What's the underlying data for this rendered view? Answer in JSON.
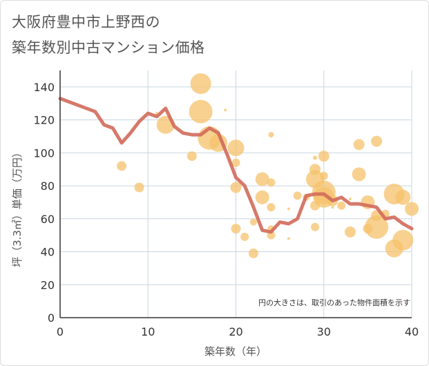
{
  "title_line1": "大阪府豊中市上野西の",
  "title_line2": "築年数別中古マンション価格",
  "chart_data": {
    "type": "scatter",
    "title": "大阪府豊中市上野西の築年数別中古マンション価格",
    "xlabel": "築年数（年）",
    "ylabel": "坪（3.3㎡）単価（万円）",
    "xlim": [
      0,
      40
    ],
    "ylim": [
      0,
      150
    ],
    "xticks": [
      "0",
      "10",
      "20",
      "30",
      "40"
    ],
    "yticks": [
      "0",
      "20",
      "40",
      "60",
      "80",
      "100",
      "120",
      "140"
    ],
    "grid": true,
    "note": "円の大きさは、取引のあった物件面積を示す",
    "colors": {
      "bubble": "#f5c26b",
      "line": "#d26a5a",
      "grid": "#c8d6e0",
      "axis": "#333333"
    },
    "bubbles": [
      {
        "x": 7,
        "y": 92,
        "s": 7
      },
      {
        "x": 9,
        "y": 79,
        "s": 7
      },
      {
        "x": 11,
        "y": 124,
        "s": 2
      },
      {
        "x": 12,
        "y": 117,
        "s": 13
      },
      {
        "x": 15,
        "y": 98,
        "s": 7
      },
      {
        "x": 16,
        "y": 142,
        "s": 15
      },
      {
        "x": 16,
        "y": 125,
        "s": 17
      },
      {
        "x": 17,
        "y": 109,
        "s": 17
      },
      {
        "x": 18,
        "y": 106,
        "s": 13
      },
      {
        "x": 18.8,
        "y": 126,
        "s": 2
      },
      {
        "x": 20,
        "y": 103,
        "s": 12
      },
      {
        "x": 20,
        "y": 94,
        "s": 6
      },
      {
        "x": 20,
        "y": 79,
        "s": 8
      },
      {
        "x": 20,
        "y": 54,
        "s": 7
      },
      {
        "x": 21,
        "y": 49,
        "s": 6
      },
      {
        "x": 22,
        "y": 39,
        "s": 7
      },
      {
        "x": 22,
        "y": 58,
        "s": 5
      },
      {
        "x": 23,
        "y": 84,
        "s": 10
      },
      {
        "x": 23,
        "y": 73,
        "s": 10
      },
      {
        "x": 24,
        "y": 111,
        "s": 4
      },
      {
        "x": 24,
        "y": 82,
        "s": 6
      },
      {
        "x": 24,
        "y": 67,
        "s": 6
      },
      {
        "x": 24,
        "y": 54,
        "s": 5
      },
      {
        "x": 24,
        "y": 50,
        "s": 6
      },
      {
        "x": 26,
        "y": 66,
        "s": 2
      },
      {
        "x": 26,
        "y": 48,
        "s": 2
      },
      {
        "x": 27,
        "y": 74,
        "s": 6
      },
      {
        "x": 28,
        "y": 73,
        "s": 5
      },
      {
        "x": 29,
        "y": 97,
        "s": 3
      },
      {
        "x": 29,
        "y": 90,
        "s": 8
      },
      {
        "x": 29,
        "y": 84,
        "s": 13
      },
      {
        "x": 29,
        "y": 68,
        "s": 7
      },
      {
        "x": 29,
        "y": 55,
        "s": 6
      },
      {
        "x": 30,
        "y": 98,
        "s": 8
      },
      {
        "x": 30,
        "y": 86,
        "s": 6
      },
      {
        "x": 30,
        "y": 76,
        "s": 17
      },
      {
        "x": 30,
        "y": 73,
        "s": 15
      },
      {
        "x": 31,
        "y": 71,
        "s": 8
      },
      {
        "x": 31,
        "y": 67,
        "s": 2
      },
      {
        "x": 32,
        "y": 68,
        "s": 6
      },
      {
        "x": 33,
        "y": 72,
        "s": 2
      },
      {
        "x": 33,
        "y": 52,
        "s": 8
      },
      {
        "x": 34,
        "y": 105,
        "s": 8
      },
      {
        "x": 34,
        "y": 87,
        "s": 10
      },
      {
        "x": 35,
        "y": 70,
        "s": 10
      },
      {
        "x": 35,
        "y": 54,
        "s": 7
      },
      {
        "x": 36,
        "y": 107,
        "s": 8
      },
      {
        "x": 36,
        "y": 62,
        "s": 8
      },
      {
        "x": 36,
        "y": 55,
        "s": 17
      },
      {
        "x": 37,
        "y": 63,
        "s": 6
      },
      {
        "x": 38,
        "y": 75,
        "s": 15
      },
      {
        "x": 38,
        "y": 42,
        "s": 13
      },
      {
        "x": 39,
        "y": 73,
        "s": 11
      },
      {
        "x": 39,
        "y": 47,
        "s": 15
      },
      {
        "x": 40,
        "y": 66,
        "s": 10
      }
    ],
    "series": [
      {
        "x": [
          0,
          4,
          5,
          6,
          7,
          8,
          9,
          10,
          11,
          12,
          13,
          14,
          15,
          16,
          17,
          18,
          19,
          20,
          21,
          22,
          23,
          24,
          25,
          26,
          27,
          28,
          29,
          30,
          31,
          32,
          33,
          34,
          35,
          36,
          37,
          38,
          39,
          40
        ],
        "y": [
          133,
          125,
          117,
          115,
          106,
          112,
          119,
          124,
          122,
          127,
          116,
          112,
          111,
          111,
          115,
          112,
          99,
          85,
          80,
          67,
          53,
          52,
          58,
          57,
          60,
          74,
          75,
          75,
          71,
          73,
          69,
          69,
          68,
          67,
          60,
          61,
          57,
          54
        ]
      }
    ]
  }
}
